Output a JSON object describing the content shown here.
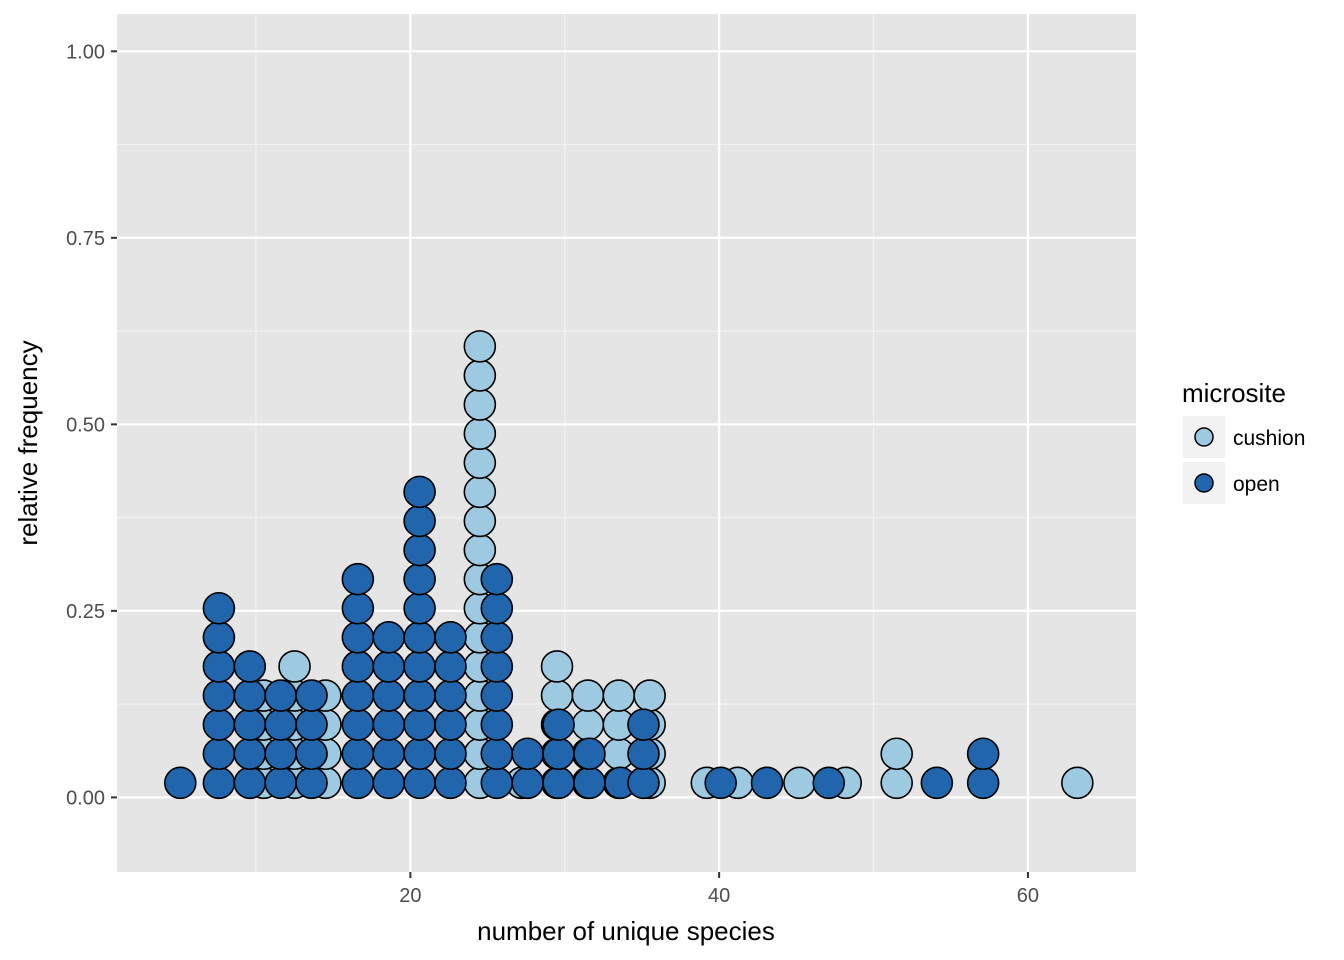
{
  "chart_data": {
    "type": "scatter",
    "subtype": "dotplot",
    "title": "",
    "xlabel": "number of unique species",
    "ylabel": "relative frequency",
    "xlim": [
      1,
      67
    ],
    "ylim": [
      -0.1,
      1.05
    ],
    "x_ticks": [
      20,
      40,
      60
    ],
    "x_tick_labels": [
      "20",
      "40",
      "60"
    ],
    "y_ticks": [
      0,
      0.25,
      0.5,
      0.75,
      1
    ],
    "y_tick_labels": [
      "0.00",
      "0.25",
      "0.50",
      "0.75",
      "1.00"
    ],
    "grid": true,
    "legend": {
      "title": "microsite",
      "position": "right",
      "entries": [
        "cushion",
        "open"
      ]
    },
    "colors": {
      "cushion": "#9ecae1",
      "open": "#2166ac",
      "panel": "#e5e5e5",
      "grid": "#ffffff"
    },
    "series": [
      {
        "name": "cushion",
        "stacks": [
          {
            "x": 10.5,
            "count": 4
          },
          {
            "x": 12.5,
            "count": 5
          },
          {
            "x": 14.5,
            "count": 4
          },
          {
            "x": 24.5,
            "count": 16
          },
          {
            "x": 27.2,
            "count": 1
          },
          {
            "x": 29.5,
            "count": 5
          },
          {
            "x": 31.5,
            "count": 4
          },
          {
            "x": 33.5,
            "count": 4
          },
          {
            "x": 35.5,
            "count": 4
          },
          {
            "x": 39.2,
            "count": 1
          },
          {
            "x": 41.2,
            "count": 1
          },
          {
            "x": 45.2,
            "count": 1
          },
          {
            "x": 48.2,
            "count": 1
          },
          {
            "x": 51.5,
            "count": 2
          },
          {
            "x": 63.2,
            "count": 1
          }
        ]
      },
      {
        "name": "open",
        "stacks": [
          {
            "x": 5.1,
            "count": 1
          },
          {
            "x": 7.6,
            "count": 7
          },
          {
            "x": 9.6,
            "count": 5
          },
          {
            "x": 11.6,
            "count": 4
          },
          {
            "x": 13.6,
            "count": 4
          },
          {
            "x": 16.6,
            "count": 8
          },
          {
            "x": 18.6,
            "count": 6
          },
          {
            "x": 20.6,
            "count": 11
          },
          {
            "x": 22.6,
            "count": 6
          },
          {
            "x": 25.6,
            "count": 8
          },
          {
            "x": 27.6,
            "count": 2
          },
          {
            "x": 29.6,
            "count": 3
          },
          {
            "x": 31.6,
            "count": 2
          },
          {
            "x": 33.6,
            "count": 1
          },
          {
            "x": 35.1,
            "count": 3
          },
          {
            "x": 40.1,
            "count": 1
          },
          {
            "x": 43.1,
            "count": 1
          },
          {
            "x": 47.1,
            "count": 1
          },
          {
            "x": 54.1,
            "count": 1
          },
          {
            "x": 57.1,
            "count": 2
          }
        ]
      }
    ]
  }
}
